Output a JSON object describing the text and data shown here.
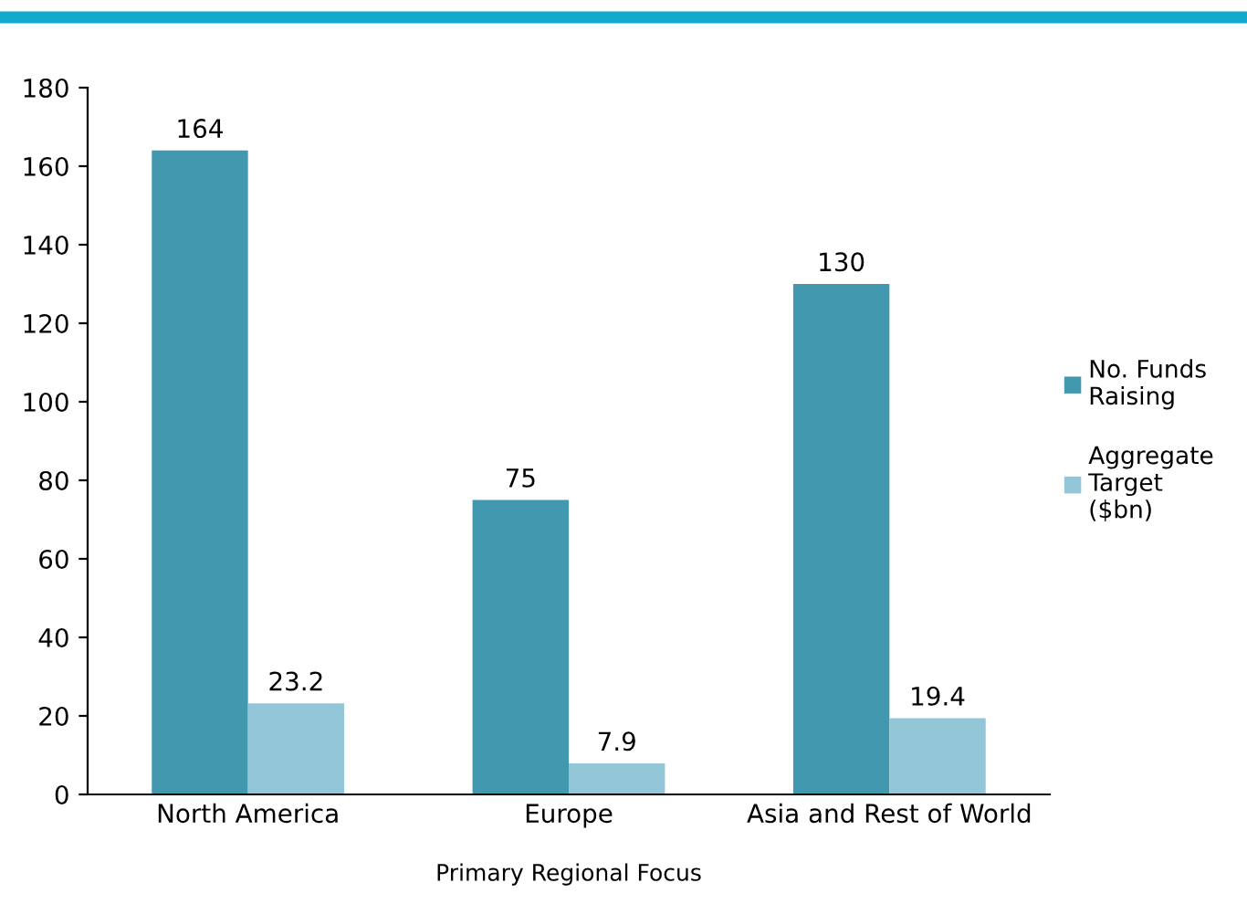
{
  "chart_data": {
    "type": "bar",
    "xlabel": "Primary Regional Focus",
    "categories": [
      "North America",
      "Europe",
      "Asia and Rest of World"
    ],
    "series": [
      {
        "name": "No. Funds\nRaising",
        "color": "#4198af",
        "values": [
          164,
          75,
          130
        ]
      },
      {
        "name": "Aggregate\nTarget\n($bn)",
        "color": "#93c6d7",
        "values": [
          23.2,
          7.9,
          19.4
        ]
      }
    ],
    "ylim": [
      0,
      180
    ],
    "yticks": [
      0,
      20,
      40,
      60,
      80,
      100,
      120,
      140,
      160,
      180
    ],
    "data_labels": true,
    "legend": "right",
    "grid": false
  }
}
